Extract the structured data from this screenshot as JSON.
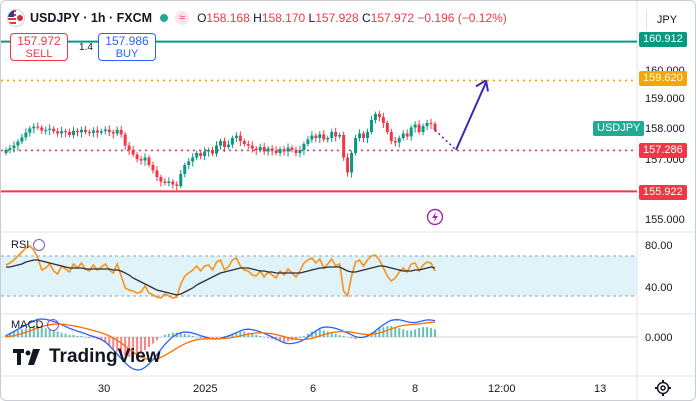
{
  "header": {
    "symbol": "USDJPY",
    "interval": "1h",
    "exchange": "FXCM",
    "title": "USDJPY · 1h · FXCM",
    "status_glyph": "≈",
    "ohlc": {
      "o_label": "O",
      "o": "158.168",
      "h_label": "H",
      "h": "158.170",
      "l_label": "L",
      "l": "157.928",
      "c_label": "C",
      "c": "157.972",
      "change": "−0.196 (−0.12%)"
    }
  },
  "trade": {
    "sell_price": "157.972",
    "sell_label": "SELL",
    "spread": "1.4",
    "buy_price": "157.986",
    "buy_label": "BUY"
  },
  "price_scale": {
    "currency": "JPY",
    "ticks": [
      "160.000",
      "159.000",
      "158.000",
      "157.000",
      "156.000",
      "155.000"
    ],
    "symbol_tag": "USDJPY",
    "tags": [
      {
        "label": "160.912",
        "color": "#089981"
      },
      {
        "label": "159.620",
        "color": "#f7a600"
      },
      {
        "label": "157.286",
        "color": "#f23645"
      },
      {
        "label": "155.922",
        "color": "#f23645"
      }
    ]
  },
  "rsi": {
    "label": "RSI",
    "ticks": [
      "80.00",
      "40.00"
    ]
  },
  "macd": {
    "label": "MACD",
    "ticks": [
      "0.000"
    ]
  },
  "time_axis": {
    "labels": [
      "30",
      "2025",
      "6",
      "8",
      "12:00",
      "13"
    ]
  },
  "branding": {
    "logo_text": "TradingView"
  },
  "colors": {
    "up": "#089981",
    "down": "#f23645",
    "resistance": "#089981",
    "target": "#f7a600",
    "support": "#f23645",
    "arrow": "#3c2aa8",
    "rsi_line": "#f7931a",
    "rsi_ma": "#2a2e39",
    "rsi_band": "#dff3f8",
    "macd_line": "#2962ff",
    "signal_line": "#ff6d00"
  },
  "chart_data": [
    {
      "type": "candlestick",
      "title": "USDJPY · 1h · FXCM",
      "ylim": [
        155.0,
        161.0
      ],
      "x_labels": [
        "30",
        "2025",
        "6",
        "8",
        "12:00",
        "13"
      ],
      "levels": [
        {
          "value": 160.912,
          "style": "solid",
          "color": "#089981"
        },
        {
          "value": 159.62,
          "style": "dotted",
          "color": "#f7a600"
        },
        {
          "value": 157.286,
          "style": "dotted",
          "color": "#f23645"
        },
        {
          "value": 155.922,
          "style": "solid",
          "color": "#f23645"
        }
      ],
      "close": [
        157.3,
        157.36,
        157.45,
        157.58,
        157.72,
        157.88,
        158.02,
        158.08,
        158.05,
        157.95,
        157.97,
        158.01,
        157.92,
        157.85,
        157.93,
        157.9,
        157.8,
        157.94,
        157.89,
        157.97,
        157.9,
        157.87,
        157.95,
        157.88,
        157.93,
        157.98,
        157.9,
        157.85,
        157.97,
        157.82,
        157.45,
        157.3,
        157.15,
        157.0,
        156.95,
        157.05,
        156.8,
        156.62,
        156.4,
        156.25,
        156.2,
        156.25,
        156.15,
        156.1,
        156.5,
        156.8,
        156.92,
        157.05,
        157.2,
        157.1,
        157.25,
        157.3,
        157.18,
        157.45,
        157.6,
        157.4,
        157.48,
        157.7,
        157.78,
        157.6,
        157.5,
        157.45,
        157.35,
        157.3,
        157.4,
        157.25,
        157.35,
        157.28,
        157.2,
        157.33,
        157.25,
        157.38,
        157.3,
        157.2,
        157.3,
        157.5,
        157.65,
        157.78,
        157.7,
        157.82,
        157.65,
        157.7,
        157.9,
        157.75,
        157.8,
        157.05,
        156.55,
        157.2,
        157.7,
        157.85,
        157.7,
        157.9,
        158.3,
        158.5,
        158.4,
        158.2,
        157.9,
        157.6,
        157.55,
        157.7,
        157.85,
        157.75,
        158.05,
        158.15,
        157.9,
        158.1,
        158.2,
        158.17,
        157.97
      ],
      "open": [
        157.2,
        157.3,
        157.36,
        157.45,
        157.58,
        157.72,
        157.88,
        158.02,
        158.08,
        158.05,
        157.95,
        157.97,
        158.01,
        157.92,
        157.85,
        157.93,
        157.9,
        157.8,
        157.94,
        157.89,
        157.97,
        157.9,
        157.87,
        157.95,
        157.88,
        157.93,
        157.98,
        157.9,
        157.85,
        157.97,
        157.82,
        157.45,
        157.3,
        157.15,
        157.0,
        156.95,
        157.05,
        156.8,
        156.62,
        156.4,
        156.25,
        156.2,
        156.25,
        156.15,
        156.1,
        156.5,
        156.8,
        156.92,
        157.05,
        157.2,
        157.1,
        157.25,
        157.3,
        157.18,
        157.45,
        157.6,
        157.4,
        157.48,
        157.7,
        157.78,
        157.6,
        157.5,
        157.45,
        157.35,
        157.3,
        157.4,
        157.25,
        157.35,
        157.28,
        157.2,
        157.33,
        157.25,
        157.38,
        157.3,
        157.2,
        157.3,
        157.5,
        157.65,
        157.78,
        157.7,
        157.82,
        157.65,
        157.7,
        157.9,
        157.75,
        157.8,
        157.05,
        156.55,
        157.2,
        157.7,
        157.85,
        157.7,
        157.9,
        158.3,
        158.5,
        158.4,
        158.2,
        157.9,
        157.6,
        157.55,
        157.7,
        157.85,
        157.75,
        158.05,
        158.15,
        157.9,
        158.1,
        158.2,
        158.17
      ],
      "projection": {
        "from": 157.3,
        "to": 159.62
      }
    },
    {
      "type": "line",
      "title": "RSI",
      "ylim": [
        20,
        100
      ],
      "bands": [
        30,
        70
      ],
      "series": [
        {
          "values": [
            61,
            63,
            66,
            70,
            74,
            78,
            80,
            76,
            68,
            56,
            58,
            62,
            55,
            52,
            60,
            57,
            54,
            62,
            58,
            63,
            57,
            55,
            61,
            56,
            59,
            62,
            56,
            53,
            62,
            50,
            38,
            36,
            35,
            33,
            34,
            40,
            33,
            31,
            29,
            28,
            32,
            30,
            28,
            29,
            42,
            50,
            53,
            56,
            60,
            55,
            60,
            61,
            56,
            64,
            66,
            56,
            59,
            66,
            68,
            60,
            56,
            55,
            51,
            50,
            55,
            49,
            54,
            51,
            48,
            55,
            51,
            57,
            53,
            49,
            55,
            63,
            66,
            68,
            63,
            67,
            58,
            62,
            67,
            60,
            62,
            35,
            30,
            50,
            64,
            66,
            60,
            66,
            70,
            71,
            66,
            58,
            50,
            45,
            48,
            54,
            58,
            54,
            62,
            63,
            55,
            61,
            64,
            63,
            55
          ]
        },
        {
          "values": [
            59,
            59,
            60,
            61,
            62,
            64,
            65,
            66,
            66,
            65,
            64,
            63,
            62,
            61,
            60,
            59,
            58,
            58,
            58,
            58,
            57,
            57,
            57,
            57,
            57,
            57,
            57,
            56,
            56,
            55,
            53,
            51,
            48,
            46,
            44,
            42,
            40,
            38,
            36,
            35,
            34,
            33,
            32,
            31,
            32,
            34,
            36,
            38,
            41,
            43,
            45,
            47,
            49,
            51,
            53,
            54,
            55,
            56,
            57,
            58,
            58,
            58,
            57,
            56,
            55,
            55,
            54,
            54,
            53,
            53,
            53,
            53,
            53,
            53,
            53,
            54,
            55,
            56,
            57,
            58,
            58,
            59,
            59,
            59,
            59,
            57,
            55,
            54,
            54,
            55,
            56,
            57,
            58,
            59,
            60,
            60,
            59,
            58,
            57,
            56,
            55,
            55,
            55,
            56,
            56,
            57,
            58,
            59,
            58
          ]
        }
      ]
    },
    {
      "type": "bar",
      "title": "MACD",
      "ylim": [
        -0.5,
        0.5
      ],
      "series": [
        {
          "values": [
            0.02,
            0.04,
            0.05,
            0.06,
            0.07,
            0.08,
            0.09,
            0.1,
            0.1,
            0.09,
            0.08,
            0.07,
            0.06,
            0.05,
            0.04,
            0.03,
            0.02,
            0.02,
            0.01,
            0.01,
            0,
            -0.01,
            -0.01,
            -0.02,
            -0.03,
            -0.05,
            -0.08,
            -0.11,
            -0.13,
            -0.15,
            -0.17,
            -0.18,
            -0.18,
            -0.17,
            -0.15,
            -0.12,
            -0.09,
            -0.06,
            -0.03,
            0,
            0.02,
            0.03,
            0.04,
            0.04,
            0.04,
            0.03,
            0.02,
            0.01,
            0,
            -0.01,
            -0.01,
            -0.02,
            -0.02,
            -0.01,
            0,
            0.01,
            0.02,
            0.03,
            0.04,
            0.05,
            0.05,
            0.04,
            0.03,
            0.02,
            0.01,
            0,
            -0.01,
            -0.02,
            -0.03,
            -0.04,
            -0.05,
            -0.04,
            -0.03,
            -0.02,
            -0.01,
            0.01,
            0.03,
            0.05,
            0.06,
            0.07,
            0.06,
            0.05,
            0.04,
            0.03,
            0.02,
            0.01,
            0,
            -0.01,
            -0.02,
            -0.01,
            0,
            0.02,
            0.04,
            0.06,
            0.08,
            0.09,
            0.1,
            0.1,
            0.09,
            0.08,
            0.07,
            0.06,
            0.06,
            0.07,
            0.08,
            0.09,
            0.09,
            0.08,
            0.07
          ]
        }
      ]
    }
  ]
}
